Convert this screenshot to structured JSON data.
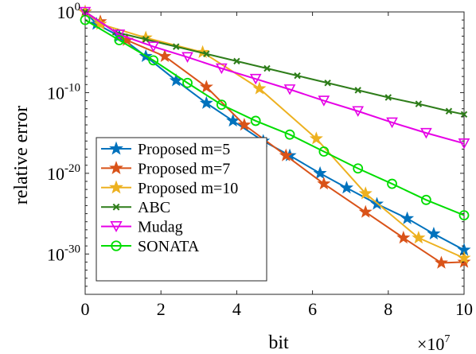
{
  "chart_data": {
    "type": "line",
    "xlabel": "bit",
    "ylabel": "relative error",
    "x_multiplier_label": "×10",
    "x_multiplier_exp": "7",
    "xlim": [
      0,
      10
    ],
    "ylim_log10": [
      -35,
      0
    ],
    "y_scale": "log",
    "x_ticks": [
      0,
      2,
      4,
      6,
      8,
      10
    ],
    "x_tick_labels": [
      "0",
      "2",
      "4",
      "6",
      "8",
      "10"
    ],
    "y_ticks_log10": [
      0,
      -10,
      -20,
      -30
    ],
    "y_tick_base": "10",
    "y_tick_exponents": [
      "0",
      "-10",
      "-20",
      "-30"
    ],
    "grid": false,
    "legend_position": "bottom-left",
    "series": [
      {
        "name": "Proposed m=5",
        "color": "#0072BD",
        "marker": "star",
        "points": [
          [
            0,
            0
          ],
          [
            0.3,
            -1.5
          ],
          [
            0.9,
            -3.0
          ],
          [
            1.6,
            -5.5
          ],
          [
            2.4,
            -8.5
          ],
          [
            3.2,
            -11.3
          ],
          [
            3.9,
            -13.5
          ],
          [
            4.7,
            -16.0
          ],
          [
            5.4,
            -17.8
          ],
          [
            6.2,
            -20.0
          ],
          [
            6.9,
            -21.8
          ],
          [
            7.7,
            -23.8
          ],
          [
            8.5,
            -25.6
          ],
          [
            9.2,
            -27.5
          ],
          [
            10.0,
            -29.5
          ]
        ]
      },
      {
        "name": "Proposed m=7",
        "color": "#D95319",
        "marker": "star",
        "points": [
          [
            0,
            0
          ],
          [
            0.4,
            -1.2
          ],
          [
            1.1,
            -3.5
          ],
          [
            2.1,
            -5.5
          ],
          [
            3.2,
            -9.3
          ],
          [
            4.2,
            -14.0
          ],
          [
            5.3,
            -17.8
          ],
          [
            6.3,
            -21.3
          ],
          [
            7.4,
            -24.8
          ],
          [
            8.4,
            -28.0
          ],
          [
            9.4,
            -31.1
          ],
          [
            10.0,
            -31.0
          ]
        ]
      },
      {
        "name": "Proposed m=10",
        "color": "#EDB120",
        "marker": "star",
        "points": [
          [
            0,
            0
          ],
          [
            0.4,
            -1.5
          ],
          [
            1.6,
            -3.2
          ],
          [
            3.1,
            -5.0
          ],
          [
            4.6,
            -9.5
          ],
          [
            6.1,
            -15.7
          ],
          [
            7.4,
            -22.5
          ],
          [
            8.8,
            -28.0
          ],
          [
            10.0,
            -30.5
          ]
        ]
      },
      {
        "name": "ABC",
        "color": "#2E7D1A",
        "marker": "x",
        "points": [
          [
            0,
            0
          ],
          [
            0.8,
            -2.5
          ],
          [
            1.6,
            -3.4
          ],
          [
            2.4,
            -4.3
          ],
          [
            3.2,
            -5.2
          ],
          [
            4.0,
            -6.1
          ],
          [
            4.8,
            -7.0
          ],
          [
            5.6,
            -7.9
          ],
          [
            6.4,
            -8.8
          ],
          [
            7.2,
            -9.7
          ],
          [
            8.0,
            -10.6
          ],
          [
            8.8,
            -11.4
          ],
          [
            9.6,
            -12.3
          ],
          [
            10.0,
            -12.7
          ]
        ]
      },
      {
        "name": "Mudag",
        "color": "#E600E6",
        "marker": "triangle-down",
        "points": [
          [
            0,
            0
          ],
          [
            0.9,
            -2.8
          ],
          [
            1.8,
            -4.3
          ],
          [
            2.7,
            -5.6
          ],
          [
            3.6,
            -7.0
          ],
          [
            4.5,
            -8.3
          ],
          [
            5.4,
            -9.6
          ],
          [
            6.3,
            -11.0
          ],
          [
            7.2,
            -12.3
          ],
          [
            8.1,
            -13.7
          ],
          [
            9.0,
            -15.0
          ],
          [
            10.0,
            -16.3
          ]
        ]
      },
      {
        "name": "SONATA",
        "color": "#00DD00",
        "marker": "circle",
        "points": [
          [
            0,
            -1.0
          ],
          [
            0.9,
            -3.5
          ],
          [
            1.8,
            -6.0
          ],
          [
            2.7,
            -8.8
          ],
          [
            3.6,
            -11.5
          ],
          [
            4.5,
            -13.5
          ],
          [
            5.4,
            -15.2
          ],
          [
            6.3,
            -17.3
          ],
          [
            7.2,
            -19.4
          ],
          [
            8.1,
            -21.3
          ],
          [
            9.0,
            -23.3
          ],
          [
            10.0,
            -25.2
          ]
        ]
      }
    ]
  }
}
